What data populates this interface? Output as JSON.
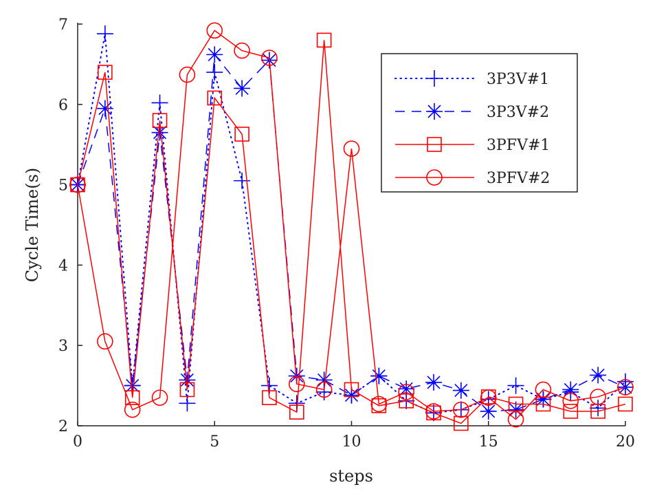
{
  "chart_data": {
    "type": "line",
    "title": "",
    "xlabel": "steps",
    "ylabel": "Cycle Time(s)",
    "xlim": [
      0,
      20
    ],
    "ylim": [
      2,
      7
    ],
    "xticks": [
      "0",
      "5",
      "10",
      "15",
      "20"
    ],
    "yticks": [
      "2",
      "3",
      "4",
      "5",
      "6",
      "7"
    ],
    "grid": false,
    "legend_position": "top-right",
    "x": [
      0,
      1,
      2,
      3,
      4,
      5,
      6,
      7,
      8,
      9,
      10,
      11,
      12,
      13,
      14,
      15,
      16,
      17,
      18,
      19,
      20
    ],
    "series": [
      {
        "name": "3P3V#1",
        "color": "#0000ff",
        "line": "dotted",
        "marker": "plus",
        "values": [
          5.0,
          6.88,
          2.5,
          6.02,
          2.28,
          6.4,
          5.05,
          2.5,
          2.28,
          2.42,
          2.38,
          2.62,
          2.31,
          2.16,
          2.2,
          2.33,
          2.5,
          2.33,
          2.42,
          2.22,
          2.55
        ]
      },
      {
        "name": "3P3V#2",
        "color": "#0000ff",
        "line": "dashed",
        "marker": "asterisk",
        "values": [
          5.0,
          5.95,
          2.5,
          5.65,
          2.57,
          6.62,
          6.2,
          6.55,
          2.62,
          2.57,
          2.38,
          2.62,
          2.46,
          2.54,
          2.44,
          2.18,
          2.2,
          2.33,
          2.45,
          2.63,
          2.48
        ]
      },
      {
        "name": "3PFV#1",
        "color": "#ff0000",
        "line": "solid",
        "marker": "square",
        "values": [
          5.0,
          6.4,
          2.35,
          5.8,
          2.45,
          6.08,
          5.63,
          2.35,
          2.17,
          6.8,
          2.45,
          2.25,
          2.31,
          2.16,
          2.03,
          2.36,
          2.27,
          2.27,
          2.18,
          2.18,
          2.27
        ]
      },
      {
        "name": "3PFV#2",
        "color": "#ff0000",
        "line": "solid",
        "marker": "circle",
        "values": [
          5.0,
          3.05,
          2.2,
          2.35,
          6.37,
          6.92,
          6.67,
          6.58,
          2.52,
          2.45,
          5.45,
          2.27,
          2.42,
          2.18,
          2.2,
          2.35,
          2.08,
          2.45,
          2.31,
          2.36,
          2.48
        ]
      }
    ]
  }
}
